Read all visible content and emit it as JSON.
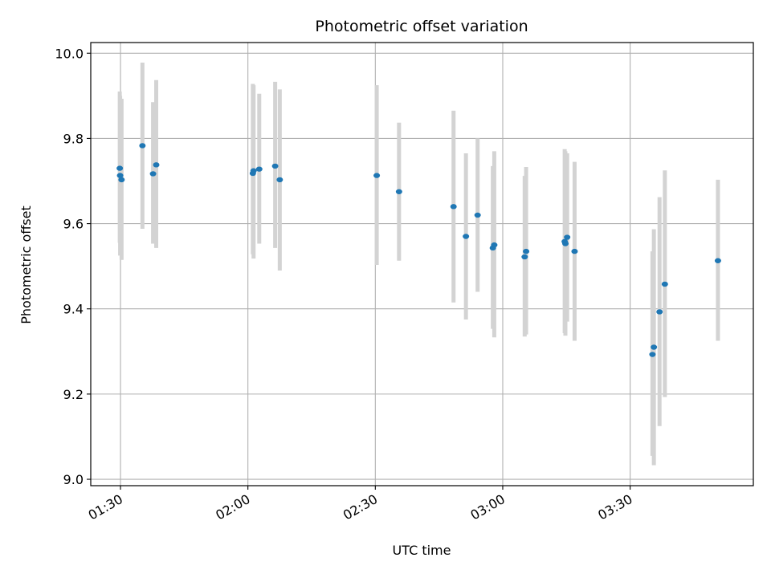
{
  "chart_data": {
    "type": "scatter",
    "title": "Photometric offset variation",
    "xlabel": "UTC time",
    "ylabel": "Photometric offset",
    "x_unit": "UTC",
    "xlim": [
      "01:23",
      "03:59"
    ],
    "ylim": [
      8.985,
      10.025
    ],
    "grid": true,
    "xticks": [
      "01:30",
      "02:00",
      "02:30",
      "03:00",
      "03:30"
    ],
    "yticks": [
      9.0,
      9.2,
      9.4,
      9.6,
      9.8,
      10.0
    ],
    "ytick_labels": [
      "9.0",
      "9.2",
      "9.4",
      "9.6",
      "9.8",
      "10.0"
    ],
    "colors": {
      "marker": "#1f77b4",
      "errorbar": "#d3d3d3",
      "grid": "#b0b0b0"
    },
    "series": [
      {
        "points": [
          {
            "x": "01:29:50",
            "y": 9.73,
            "err_low": 9.555,
            "err_high": 9.91
          },
          {
            "x": "01:29:55",
            "y": 9.713,
            "err_low": 9.525,
            "err_high": 9.9
          },
          {
            "x": "01:30:15",
            "y": 9.703,
            "err_low": 9.515,
            "err_high": 9.893
          },
          {
            "x": "01:35:10",
            "y": 9.783,
            "err_low": 9.588,
            "err_high": 9.978
          },
          {
            "x": "01:37:40",
            "y": 9.717,
            "err_low": 9.553,
            "err_high": 9.885
          },
          {
            "x": "01:38:25",
            "y": 9.738,
            "err_low": 9.543,
            "err_high": 9.937
          },
          {
            "x": "02:01:10",
            "y": 9.718,
            "err_low": 9.528,
            "err_high": 9.928
          },
          {
            "x": "02:01:20",
            "y": 9.724,
            "err_low": 9.518,
            "err_high": 9.925
          },
          {
            "x": "02:02:40",
            "y": 9.728,
            "err_low": 9.553,
            "err_high": 9.905
          },
          {
            "x": "02:06:25",
            "y": 9.735,
            "err_low": 9.543,
            "err_high": 9.933
          },
          {
            "x": "02:07:30",
            "y": 9.703,
            "err_low": 9.49,
            "err_high": 9.915
          },
          {
            "x": "02:30:20",
            "y": 9.713,
            "err_low": 9.503,
            "err_high": 9.925
          },
          {
            "x": "02:35:35",
            "y": 9.675,
            "err_low": 9.513,
            "err_high": 9.837
          },
          {
            "x": "02:48:25",
            "y": 9.64,
            "err_low": 9.415,
            "err_high": 9.865
          },
          {
            "x": "02:51:20",
            "y": 9.57,
            "err_low": 9.375,
            "err_high": 9.765
          },
          {
            "x": "02:54:05",
            "y": 9.62,
            "err_low": 9.44,
            "err_high": 9.8
          },
          {
            "x": "02:57:40",
            "y": 9.543,
            "err_low": 9.353,
            "err_high": 9.735
          },
          {
            "x": "02:58:00",
            "y": 9.55,
            "err_low": 9.333,
            "err_high": 9.77
          },
          {
            "x": "03:05:10",
            "y": 9.522,
            "err_low": 9.335,
            "err_high": 9.712
          },
          {
            "x": "03:05:30",
            "y": 9.535,
            "err_low": 9.34,
            "err_high": 9.733
          },
          {
            "x": "03:14:35",
            "y": 9.558,
            "err_low": 9.343,
            "err_high": 9.775
          },
          {
            "x": "03:14:45",
            "y": 9.553,
            "err_low": 9.337,
            "err_high": 9.77
          },
          {
            "x": "03:15:10",
            "y": 9.568,
            "err_low": 9.37,
            "err_high": 9.765
          },
          {
            "x": "03:16:55",
            "y": 9.535,
            "err_low": 9.325,
            "err_high": 9.745
          },
          {
            "x": "03:35:15",
            "y": 9.293,
            "err_low": 9.055,
            "err_high": 9.535
          },
          {
            "x": "03:35:35",
            "y": 9.31,
            "err_low": 9.033,
            "err_high": 9.587
          },
          {
            "x": "03:36:55",
            "y": 9.393,
            "err_low": 9.125,
            "err_high": 9.662
          },
          {
            "x": "03:38:10",
            "y": 9.458,
            "err_low": 9.193,
            "err_high": 9.725
          },
          {
            "x": "03:50:40",
            "y": 9.513,
            "err_low": 9.325,
            "err_high": 9.703
          }
        ]
      }
    ]
  }
}
